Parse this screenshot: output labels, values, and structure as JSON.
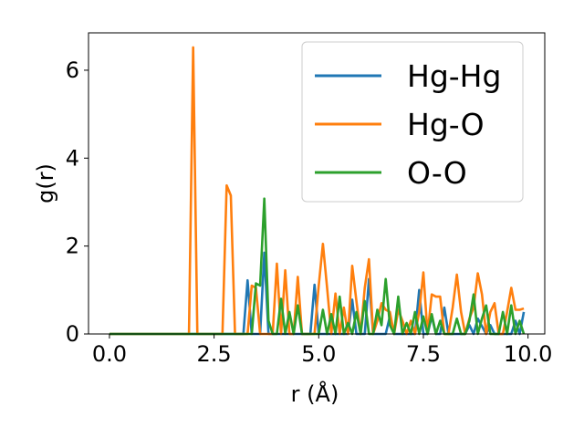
{
  "chart_data": {
    "type": "line",
    "title": "",
    "xlabel": "r (Å)",
    "ylabel": "g(r)",
    "xlim": [
      -0.5,
      10.4
    ],
    "ylim": [
      0,
      6.85
    ],
    "xticks": [
      0.0,
      2.5,
      5.0,
      7.5,
      10.0
    ],
    "xtick_labels": [
      "0.0",
      "2.5",
      "5.0",
      "7.5",
      "10.0"
    ],
    "yticks": [
      0,
      2,
      4,
      6
    ],
    "ytick_labels": [
      "0",
      "2",
      "4",
      "6"
    ],
    "grid": false,
    "legend_position": "top-right",
    "series": [
      {
        "name": "Hg-Hg",
        "color": "#1f77b4",
        "x": [
          0.0,
          3.2,
          3.3,
          3.4,
          3.5,
          3.6,
          3.7,
          3.8,
          3.9,
          4.0,
          4.8,
          4.9,
          5.0,
          5.1,
          5.7,
          5.8,
          5.9,
          6.0,
          6.1,
          6.2,
          6.3,
          6.4,
          6.5,
          6.6,
          6.7,
          6.8,
          7.3,
          7.4,
          7.5,
          7.6,
          7.7,
          7.8,
          7.9,
          8.0,
          8.1,
          8.5,
          8.6,
          8.7,
          8.8,
          9.0,
          9.1,
          9.2,
          9.3,
          9.6,
          9.7,
          9.8,
          9.9
        ],
        "y": [
          0.0,
          0.0,
          1.22,
          0.0,
          0.0,
          0.0,
          1.85,
          0.0,
          0.0,
          0.0,
          0.0,
          1.12,
          0.0,
          0.0,
          0.0,
          0.78,
          0.0,
          0.0,
          0.0,
          1.25,
          0.0,
          0.0,
          0.0,
          0.0,
          0.4,
          0.0,
          0.0,
          1.0,
          0.0,
          0.0,
          0.4,
          0.0,
          0.0,
          0.6,
          0.0,
          0.0,
          0.2,
          0.0,
          0.35,
          0.0,
          0.2,
          0.0,
          0.0,
          0.0,
          0.3,
          0.0,
          0.5
        ]
      },
      {
        "name": "Hg-O",
        "color": "#ff7f0e",
        "x": [
          0.0,
          1.9,
          2.0,
          2.1,
          2.7,
          2.8,
          2.9,
          3.0,
          3.3,
          3.4,
          3.5,
          3.6,
          3.9,
          4.0,
          4.1,
          4.2,
          4.3,
          4.4,
          4.5,
          4.6,
          4.7,
          4.8,
          4.9,
          5.0,
          5.1,
          5.2,
          5.3,
          5.4,
          5.5,
          5.6,
          5.7,
          5.8,
          5.9,
          6.0,
          6.1,
          6.2,
          6.3,
          6.4,
          6.5,
          6.6,
          6.7,
          6.8,
          6.9,
          7.0,
          7.1,
          7.2,
          7.3,
          7.4,
          7.5,
          7.6,
          7.7,
          7.8,
          7.9,
          8.0,
          8.1,
          8.2,
          8.3,
          8.4,
          8.5,
          8.6,
          8.7,
          8.8,
          8.9,
          9.0,
          9.1,
          9.2,
          9.3,
          9.4,
          9.5,
          9.6,
          9.7,
          9.8,
          9.9
        ],
        "y": [
          0.0,
          0.0,
          6.52,
          0.0,
          0.0,
          3.38,
          3.15,
          0.0,
          0.0,
          1.1,
          1.05,
          0.0,
          0.0,
          1.6,
          0.0,
          1.45,
          0.0,
          0.0,
          1.3,
          0.0,
          0.0,
          0.0,
          0.0,
          1.1,
          2.05,
          1.05,
          0.0,
          0.92,
          0.0,
          0.6,
          0.0,
          1.55,
          0.75,
          0.0,
          1.05,
          1.7,
          0.0,
          0.3,
          0.7,
          0.55,
          0.5,
          0.0,
          0.55,
          0.3,
          0.0,
          0.3,
          0.0,
          0.5,
          1.4,
          0.0,
          0.9,
          0.85,
          0.85,
          0.0,
          0.0,
          0.6,
          1.35,
          0.5,
          0.0,
          0.35,
          0.6,
          1.38,
          0.9,
          0.0,
          0.5,
          0.7,
          0.0,
          0.0,
          0.5,
          1.05,
          0.55,
          0.55,
          0.58
        ]
      },
      {
        "name": "O-O",
        "color": "#2ca02c",
        "x": [
          0.0,
          3.3,
          3.4,
          3.5,
          3.6,
          3.7,
          3.8,
          3.9,
          4.0,
          4.1,
          4.2,
          4.3,
          4.4,
          4.5,
          4.6,
          4.7,
          4.8,
          4.9,
          5.0,
          5.1,
          5.2,
          5.3,
          5.4,
          5.5,
          5.6,
          5.7,
          5.8,
          5.9,
          6.0,
          6.1,
          6.2,
          6.3,
          6.4,
          6.5,
          6.6,
          6.7,
          6.8,
          6.9,
          7.0,
          7.1,
          7.2,
          7.3,
          7.4,
          7.5,
          7.6,
          7.7,
          7.8,
          7.9,
          8.0,
          8.1,
          8.2,
          8.3,
          8.4,
          8.5,
          8.6,
          8.7,
          8.8,
          8.9,
          9.0,
          9.1,
          9.2,
          9.3,
          9.4,
          9.5,
          9.6,
          9.7,
          9.8,
          9.9
        ],
        "y": [
          0.0,
          0.0,
          0.0,
          1.15,
          1.1,
          3.08,
          0.3,
          0.0,
          0.0,
          0.8,
          0.0,
          0.5,
          0.0,
          0.65,
          0.0,
          0.0,
          0.0,
          0.0,
          0.0,
          0.55,
          0.0,
          0.45,
          0.0,
          0.85,
          0.0,
          0.25,
          0.0,
          0.5,
          0.0,
          0.75,
          0.0,
          0.0,
          0.55,
          0.2,
          1.25,
          0.2,
          0.0,
          0.85,
          0.0,
          0.25,
          0.0,
          0.5,
          0.0,
          0.4,
          0.0,
          0.45,
          0.0,
          0.3,
          0.0,
          0.0,
          0.0,
          0.35,
          0.0,
          0.0,
          0.3,
          0.9,
          0.0,
          0.35,
          0.65,
          0.0,
          0.0,
          0.0,
          0.5,
          0.0,
          0.65,
          0.0,
          0.3,
          0.0
        ]
      }
    ]
  }
}
